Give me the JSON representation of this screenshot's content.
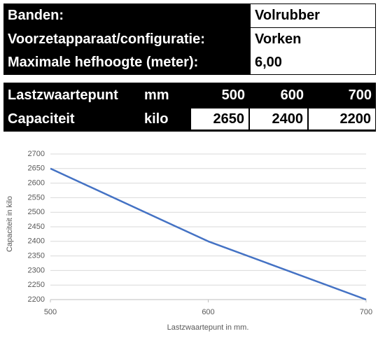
{
  "info": {
    "rows": [
      {
        "label": "Banden:",
        "value": "Volrubber"
      },
      {
        "label": "Voorzetapparaat/configuratie:",
        "value": "Vorken"
      },
      {
        "label": "Maximale hefhoogte (meter):",
        "value": "6,00"
      }
    ]
  },
  "table": {
    "rows": [
      [
        "Lastzwaartepunt",
        "mm",
        "500",
        "600",
        "700"
      ],
      [
        "Capaciteit",
        "kilo",
        "2650",
        "2400",
        "2200"
      ]
    ]
  },
  "chart_data": {
    "type": "line",
    "xlabel": "Lastzwaartepunt in mm.",
    "ylabel": "Capaciteit in kilo",
    "x": [
      500,
      600,
      700
    ],
    "series": [
      {
        "color": "#4472c4",
        "values": [
          2650,
          2400,
          2200
        ]
      }
    ],
    "xlim": [
      500,
      700
    ],
    "xticks": [
      500,
      600,
      700
    ],
    "ylim": [
      2200,
      2700
    ],
    "yticks": [
      2200,
      2250,
      2300,
      2350,
      2400,
      2450,
      2500,
      2550,
      2600,
      2650,
      2700
    ],
    "grid": true
  }
}
